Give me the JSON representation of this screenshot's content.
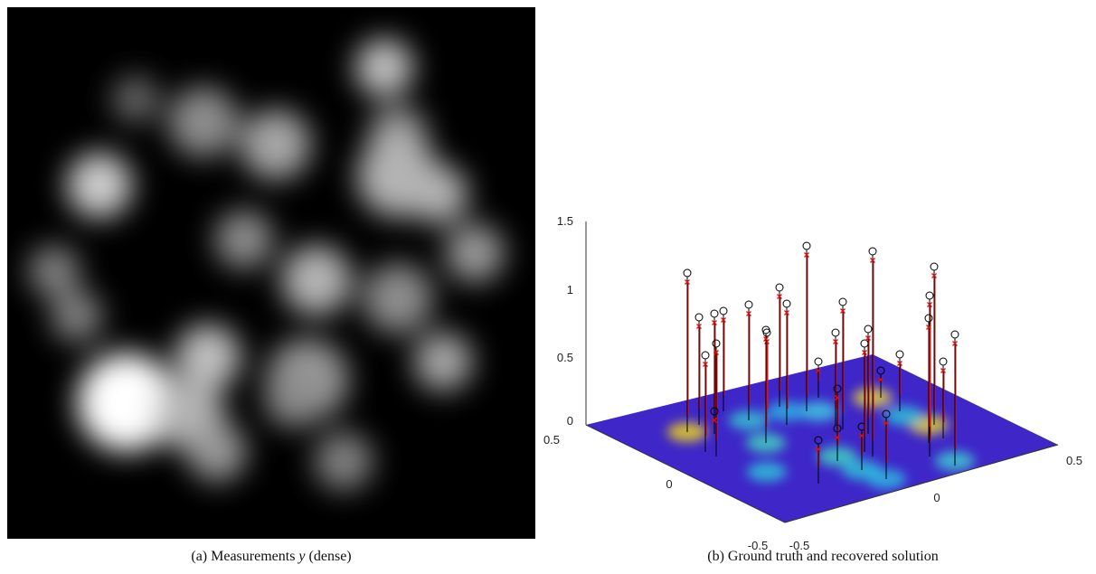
{
  "figures": [
    {
      "caption": {
        "prefix": "(a) Measurements ",
        "variable": "y",
        "suffix": " (dense)"
      }
    },
    {
      "caption": "(b) Ground truth and recovered solution",
      "z_ticks": [
        "1.5",
        "1",
        "0.5",
        "0"
      ],
      "left_axis_ticks": [
        "0.5",
        "0",
        "-0.5"
      ],
      "right_axis_ticks": [
        "-0.5",
        "0",
        "0.5"
      ]
    }
  ]
}
